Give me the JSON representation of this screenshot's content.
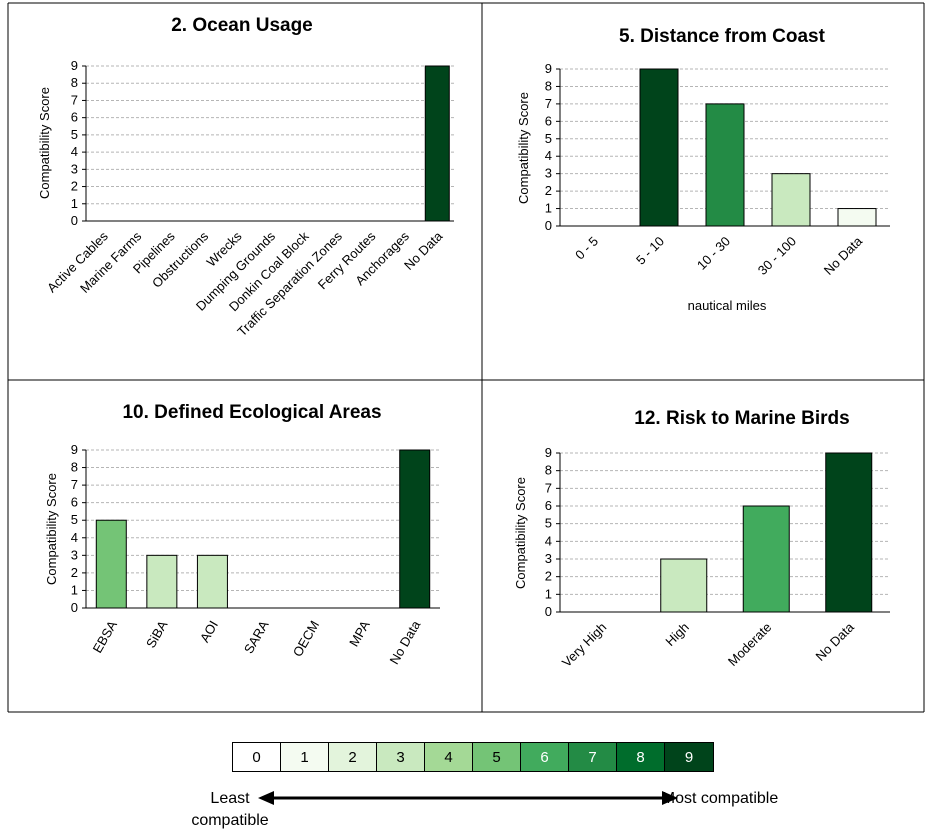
{
  "palette": {
    "0": "#ffffff",
    "1": "#f4fbf1",
    "2": "#e3f4dc",
    "3": "#c9e9bf",
    "4": "#a4d996",
    "5": "#74c476",
    "6": "#41ab5d",
    "7": "#238b45",
    "8": "#006d2c",
    "9": "#00441b"
  },
  "chart_data": [
    {
      "type": "bar",
      "title": "2. Ocean Usage",
      "xlabel": "",
      "ylabel": "Compatibility Score",
      "categories": [
        "Active Cables",
        "Marine Farms",
        "Pipelines",
        "Obstructions",
        "Wrecks",
        "Dumping Grounds",
        "Donkin Coal Block",
        "Traffic Separation Zones",
        "Ferry Routes",
        "Anchorages",
        "No Data"
      ],
      "values": [
        0,
        0,
        0,
        0,
        0,
        0,
        0,
        0,
        0,
        0,
        9
      ],
      "ylim": [
        0,
        9
      ],
      "yticks": [
        0,
        1,
        2,
        3,
        4,
        5,
        6,
        7,
        8,
        9
      ],
      "grid": "horizontal dashed"
    },
    {
      "type": "bar",
      "title": "5. Distance from Coast",
      "xlabel": "nautical miles",
      "ylabel": "Compatibility Score",
      "categories": [
        "0 - 5",
        "5 - 10",
        "10 - 30",
        "30 - 100",
        "No Data"
      ],
      "values": [
        0,
        9,
        7,
        3,
        1
      ],
      "ylim": [
        0,
        9
      ],
      "yticks": [
        0,
        1,
        2,
        3,
        4,
        5,
        6,
        7,
        8,
        9
      ],
      "grid": "horizontal dashed"
    },
    {
      "type": "bar",
      "title": "10. Defined Ecological Areas",
      "xlabel": "",
      "ylabel": "Compatibility Score",
      "categories": [
        "EBSA",
        "SiBA",
        "AOI",
        "SARA",
        "OECM",
        "MPA",
        "No Data"
      ],
      "values": [
        5,
        3,
        3,
        0,
        0,
        0,
        9
      ],
      "ylim": [
        0,
        9
      ],
      "yticks": [
        0,
        1,
        2,
        3,
        4,
        5,
        6,
        7,
        8,
        9
      ],
      "grid": "horizontal dashed"
    },
    {
      "type": "bar",
      "title": "12. Risk to Marine Birds",
      "xlabel": "",
      "ylabel": "Compatibility Score",
      "categories": [
        "Very High",
        "High",
        "Moderate",
        "No Data"
      ],
      "values": [
        0,
        3,
        6,
        9
      ],
      "ylim": [
        0,
        9
      ],
      "yticks": [
        0,
        1,
        2,
        3,
        4,
        5,
        6,
        7,
        8,
        9
      ],
      "grid": "horizontal dashed"
    }
  ],
  "legend": {
    "scores": [
      "0",
      "1",
      "2",
      "3",
      "4",
      "5",
      "6",
      "7",
      "8",
      "9"
    ],
    "least_label": "Least compatible",
    "most_label": "Most compatible"
  }
}
